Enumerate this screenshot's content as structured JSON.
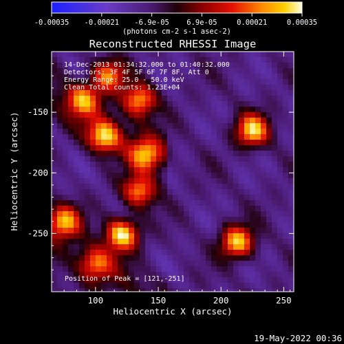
{
  "chart_data": {
    "type": "heatmap",
    "title": "Reconstructed RHESSI Image",
    "xlabel": "Heliocentric X (arcsec)",
    "ylabel": "Heliocentric Y (arcsec)",
    "xlim": [
      65,
      258
    ],
    "ylim": [
      -298,
      -100
    ],
    "x_ticks": [
      "100",
      "150",
      "200",
      "250"
    ],
    "y_ticks": [
      "-150",
      "-200",
      "-250"
    ],
    "colorbar": {
      "ticks": [
        "-0.00035",
        "-0.00021",
        "-6.9e-05",
        "6.9e-05",
        "0.00021",
        "0.00035"
      ],
      "units": "(photons cm-2 s-1 asec-2)",
      "range": [
        -0.00035,
        0.00035
      ]
    },
    "annotations": [
      "14-Dec-2013 01:34:32.000 to 01:40:32.000",
      "Detectors: 3F 4F 5F 6F 7F 8F, Att 0",
      "Energy Range: 25.0 - 50.0 keV",
      "Clean     Total counts: 1.23E+04"
    ],
    "peak_label": "Position of Peak = [121,-251]",
    "peak": {
      "x": 121,
      "y": -251
    },
    "sources": [
      {
        "x": 225,
        "y": -165,
        "value": 0.0003
      },
      {
        "x": 213,
        "y": -257,
        "value": 0.0003
      },
      {
        "x": 121,
        "y": -251,
        "value": 0.00035
      },
      {
        "x": 75,
        "y": -240,
        "value": 0.00026
      },
      {
        "x": 107,
        "y": -170,
        "value": 0.00028
      },
      {
        "x": 135,
        "y": -140,
        "value": 0.00026
      },
      {
        "x": 140,
        "y": -185,
        "value": 0.00025
      },
      {
        "x": 135,
        "y": -215,
        "value": 0.00024
      },
      {
        "x": 90,
        "y": -140,
        "value": 0.00022
      },
      {
        "x": 110,
        "y": -120,
        "value": 0.00022
      },
      {
        "x": 100,
        "y": -275,
        "value": 0.00018
      }
    ]
  },
  "timestamp": "19-May-2022 00:36"
}
